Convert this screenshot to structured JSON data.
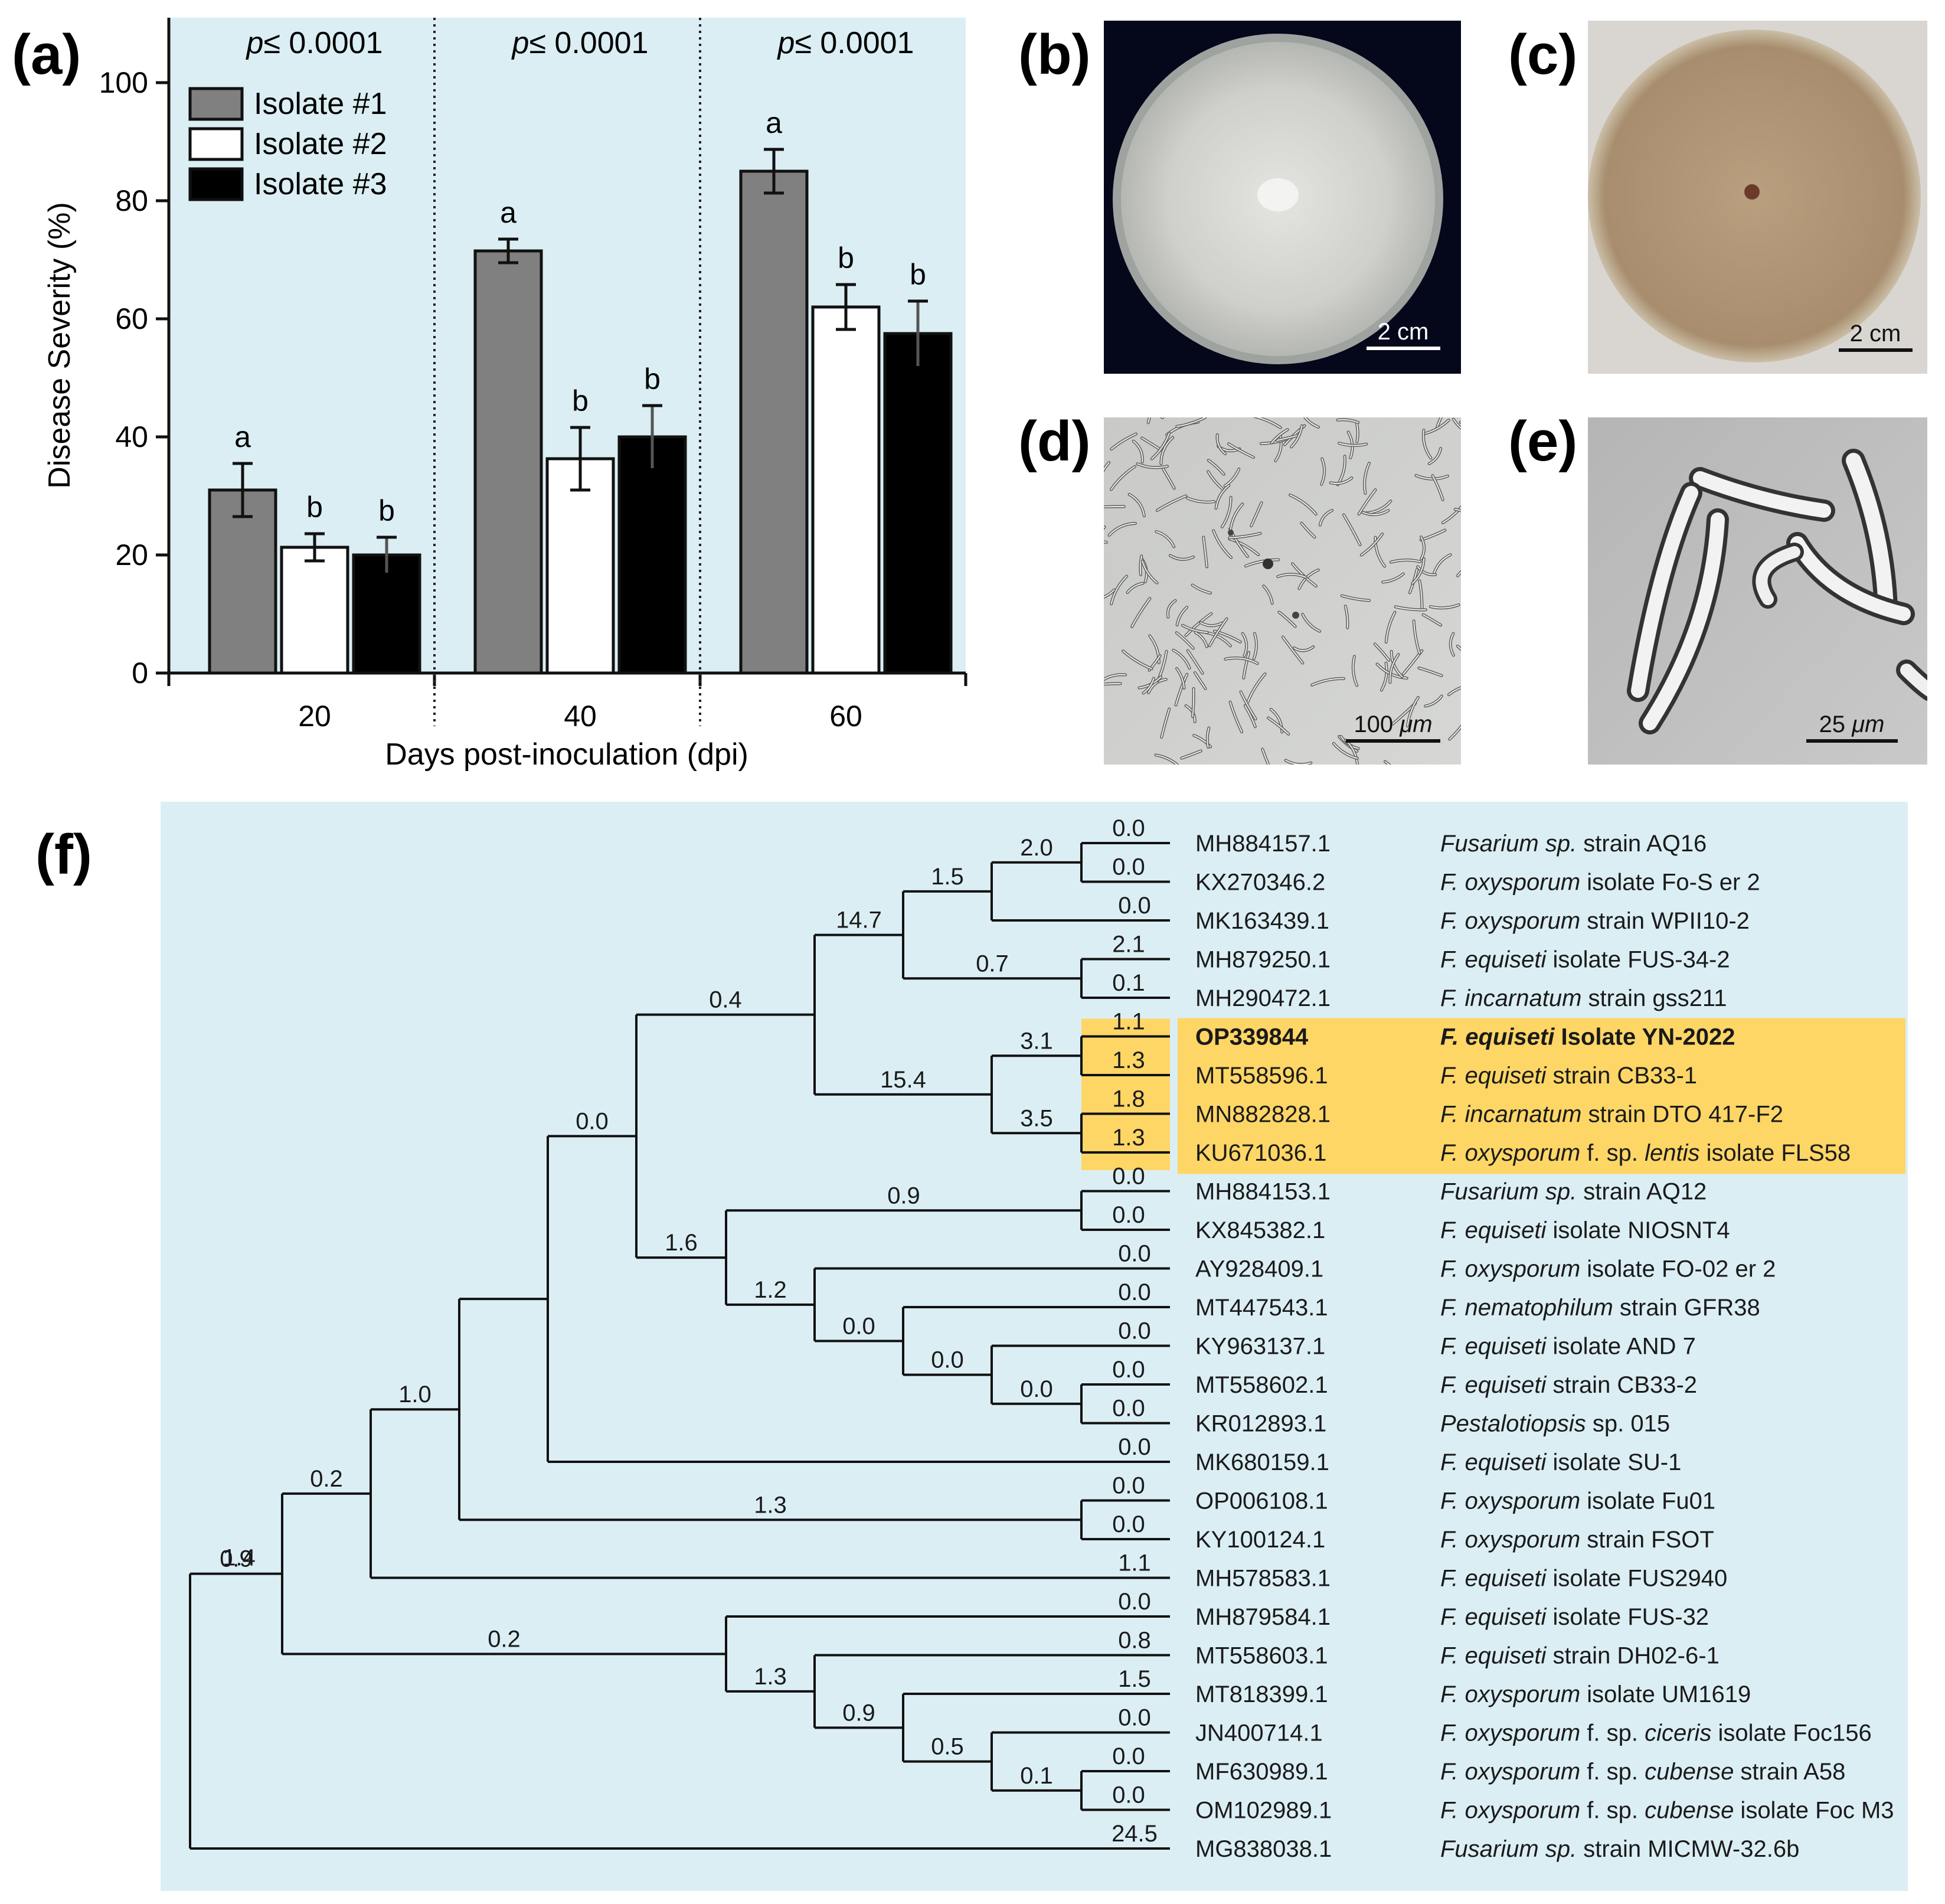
{
  "panel_labels": {
    "a": "(a)",
    "b": "(b)",
    "c": "(c)",
    "d": "(d)",
    "e": "(e)",
    "f": "(f)"
  },
  "colors": {
    "panel_bg": "#dbeef4",
    "isolate1": "#808080",
    "isolate2": "#ffffff",
    "isolate3": "#000000",
    "highlight": "#fdd666"
  },
  "chart_data": [
    {
      "type": "bar",
      "xlabel": "Days post-inoculation (dpi)",
      "ylabel": "Disease Severity (%)",
      "ylim": [
        0,
        100
      ],
      "yticks": [
        0,
        20,
        40,
        60,
        80,
        100
      ],
      "categories": [
        "20",
        "40",
        "60"
      ],
      "p_values": [
        "p≤ 0.0001",
        "p≤ 0.0001",
        "p≤ 0.0001"
      ],
      "legend_position": "top-left",
      "series": [
        {
          "name": "Isolate #1",
          "values": [
            31,
            71.5,
            85
          ],
          "errors": [
            4.5,
            2,
            3.7
          ],
          "letters": [
            "a",
            "a",
            "a"
          ],
          "color": "#808080"
        },
        {
          "name": "Isolate #2",
          "values": [
            21.3,
            36.3,
            62
          ],
          "errors": [
            2.3,
            5.3,
            3.8
          ],
          "letters": [
            "b",
            "b",
            "b"
          ],
          "color": "#ffffff"
        },
        {
          "name": "Isolate #3",
          "values": [
            20,
            40,
            57.5
          ],
          "errors": [
            3,
            5.3,
            5.5
          ],
          "letters": [
            "b",
            "b",
            "b"
          ],
          "color": "#000000"
        }
      ]
    },
    {
      "type": "tree",
      "highlight_group": [
        "OP339844",
        "MT558596.1",
        "MN882828.1",
        "KU671036.1"
      ],
      "leaves": [
        {
          "acc": "MH884157.1",
          "genus": "Fusarium",
          "species": "sp.",
          "rest": " strain AQ16"
        },
        {
          "acc": "KX270346.2",
          "genus": "F.",
          "species": "oxysporum",
          "rest": " isolate Fo-S er 2"
        },
        {
          "acc": "MK163439.1",
          "genus": "F.",
          "species": "oxysporum",
          "rest": " strain WPII10-2"
        },
        {
          "acc": "MH879250.1",
          "genus": "F.",
          "species": "equiseti",
          "rest": " isolate FUS-34-2"
        },
        {
          "acc": "MH290472.1",
          "genus": "F.",
          "species": "incarnatum",
          "rest": " strain gss211"
        },
        {
          "acc": "OP339844",
          "genus": "F.",
          "species": "equiseti",
          "rest": " Isolate YN-2022",
          "bold": true
        },
        {
          "acc": "MT558596.1",
          "genus": "F.",
          "species": "equiseti",
          "rest": " strain CB33-1"
        },
        {
          "acc": "MN882828.1",
          "genus": "F.",
          "species": "incarnatum",
          "rest": " strain DTO 417-F2"
        },
        {
          "acc": "KU671036.1",
          "genus": "F.",
          "species": "oxysporum",
          "rest": " f. sp. ",
          "forma": "lentis",
          "rest2": " isolate FLS58"
        },
        {
          "acc": "MH884153.1",
          "genus": "Fusarium",
          "species": "sp.",
          "rest": " strain AQ12"
        },
        {
          "acc": "KX845382.1",
          "genus": "F.",
          "species": "equiseti",
          "rest": " isolate NIOSNT4"
        },
        {
          "acc": "AY928409.1",
          "genus": "F.",
          "species": "oxysporum",
          "rest": " isolate FO-02 er 2"
        },
        {
          "acc": "MT447543.1",
          "genus": "F.",
          "species": "nematophilum",
          "rest": " strain GFR38"
        },
        {
          "acc": "KY963137.1",
          "genus": "F.",
          "species": "equiseti",
          "rest": " isolate AND 7"
        },
        {
          "acc": "MT558602.1",
          "genus": "F.",
          "species": "equiseti",
          "rest": " strain CB33-2"
        },
        {
          "acc": "KR012893.1",
          "genus": "Pestalotiopsis",
          "species": "",
          "rest": " sp. 015"
        },
        {
          "acc": "MK680159.1",
          "genus": "F.",
          "species": "equiseti",
          "rest": " isolate SU-1"
        },
        {
          "acc": "OP006108.1",
          "genus": "F.",
          "species": "oxysporum",
          "rest": " isolate Fu01"
        },
        {
          "acc": "KY100124.1",
          "genus": "F.",
          "species": "oxysporum",
          "rest": " strain FSOT"
        },
        {
          "acc": "MH578583.1",
          "genus": "F.",
          "species": "equiseti",
          "rest": " isolate FUS2940"
        },
        {
          "acc": "MH879584.1",
          "genus": "F.",
          "species": "equiseti",
          "rest": " isolate FUS-32"
        },
        {
          "acc": "MT558603.1",
          "genus": "F.",
          "species": "equiseti",
          "rest": " strain DH02-6-1"
        },
        {
          "acc": "MT818399.1",
          "genus": "F.",
          "species": "oxysporum",
          "rest": " isolate UM1619"
        },
        {
          "acc": "JN400714.1",
          "genus": "F.",
          "species": "oxysporum",
          "rest": " f. sp. ",
          "forma": "ciceris",
          "rest2": " isolate Foc156"
        },
        {
          "acc": "MF630989.1",
          "genus": "F.",
          "species": "oxysporum",
          "rest": " f. sp. ",
          "forma": "cubense",
          "rest2": " strain A58"
        },
        {
          "acc": "OM102989.1",
          "genus": "F.",
          "species": "oxysporum",
          "rest": " f. sp. ",
          "forma": "cubense",
          "rest2": " isolate Foc M3"
        },
        {
          "acc": "MG838038.1",
          "genus": "Fusarium",
          "species": "sp.",
          "rest": " strain MICMW-32.6b"
        }
      ],
      "leaf_branch_labels": [
        "0.0",
        "0.0",
        "0.0",
        "2.1",
        "0.1",
        "1.1",
        "1.3",
        "1.8",
        "1.3",
        "0.0",
        "0.0",
        "0.0",
        "0.0",
        "0.0",
        "0.0",
        "0.0",
        "0.0",
        "0.0",
        "0.0",
        "1.1",
        "0.0",
        "0.8",
        "1.5",
        "0.0",
        "0.0",
        "0.0",
        "24.5"
      ],
      "internal_branch_labels": [
        "2.0",
        "1.5",
        "14.7",
        "0.7",
        "0.4",
        "3.1",
        "15.4",
        "3.5",
        "0.0",
        "0.9",
        "1.6",
        "1.2",
        "0.0",
        "0.0",
        "0.0",
        "1.0",
        "0.2",
        "0.9",
        "1.4",
        "1.3",
        "0.2",
        "1.3",
        "0.9",
        "0.5",
        "0.1"
      ]
    }
  ],
  "photos": {
    "b_scale": "2 cm",
    "c_scale": "2 cm",
    "d_scale_num": "100",
    "d_scale_unit": "μm",
    "e_scale_num": "25",
    "e_scale_unit": "μm"
  }
}
